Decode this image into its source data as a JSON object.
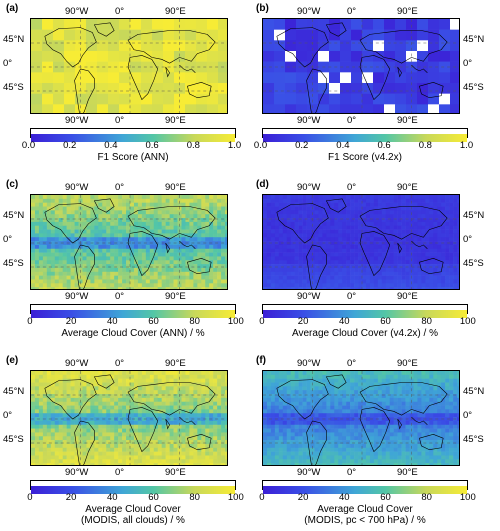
{
  "colors": {
    "viridis_dark": "#3b2fd0",
    "viridis_mid": "#3fb3c9",
    "viridis_yellow": "#f4e23a",
    "coastline": "#000000",
    "graticule": "#555555"
  },
  "axis_labels": {
    "lon_top": [
      "90°W",
      "0°",
      "90°E"
    ],
    "lon_bottom": [
      "90°W",
      "0°",
      "90°E"
    ],
    "lat": [
      "45°N",
      "0°",
      "45°S"
    ]
  },
  "chart_data": [
    {
      "type": "heatmap",
      "panel_label": "(a)",
      "quantity": "F1 Score",
      "field": "F1 score of the ANN cloud mask, ~20° grid cells, mostly ~0.9 with a few lower cells",
      "typical_value": 0.9,
      "colorbar": {
        "ticks": [
          "0.0",
          "0.2",
          "0.4",
          "0.6",
          "0.8",
          "1.0"
        ],
        "range": [
          0,
          1
        ],
        "title": "F1 Score (ANN)"
      }
    },
    {
      "type": "heatmap",
      "panel_label": "(b)",
      "quantity": "F1 Score",
      "field": "F1 score of v4.2x cloud mask, ~20° grid cells, mostly ~0.1-0.2 with some missing cells",
      "typical_value": 0.12,
      "colorbar": {
        "ticks": [
          "0.0",
          "0.2",
          "0.4",
          "0.6",
          "0.8",
          "1.0"
        ],
        "range": [
          0,
          1
        ],
        "title": "F1 Score (v4.2x)"
      }
    },
    {
      "type": "heatmap",
      "panel_label": "(c)",
      "quantity": "Average Cloud Cover",
      "typical_value": 55,
      "colorbar": {
        "ticks": [
          "0",
          "20",
          "40",
          "60",
          "80",
          "100"
        ],
        "range": [
          0,
          100
        ],
        "title": "Average Cloud Cover (ANN) / %"
      }
    },
    {
      "type": "heatmap",
      "panel_label": "(d)",
      "quantity": "Average Cloud Cover",
      "typical_value": 8,
      "colorbar": {
        "ticks": [
          "0",
          "20",
          "40",
          "60",
          "80",
          "100"
        ],
        "range": [
          0,
          100
        ],
        "title": "Average Cloud Cover (v4.2x) / %"
      }
    },
    {
      "type": "heatmap",
      "panel_label": "(e)",
      "quantity": "Average Cloud Cover",
      "typical_value": 65,
      "colorbar": {
        "ticks": [
          "0",
          "20",
          "40",
          "60",
          "80",
          "100"
        ],
        "range": [
          0,
          100
        ],
        "title": "Average Cloud Cover",
        "title2": "(MODIS, all clouds) / %"
      }
    },
    {
      "type": "heatmap",
      "panel_label": "(f)",
      "quantity": "Average Cloud Cover",
      "typical_value": 30,
      "colorbar": {
        "ticks": [
          "0",
          "20",
          "40",
          "60",
          "80",
          "100"
        ],
        "range": [
          0,
          100
        ],
        "title": "Average Cloud Cover",
        "title2": "(MODIS, pc < 700 hPa) / %"
      }
    }
  ]
}
